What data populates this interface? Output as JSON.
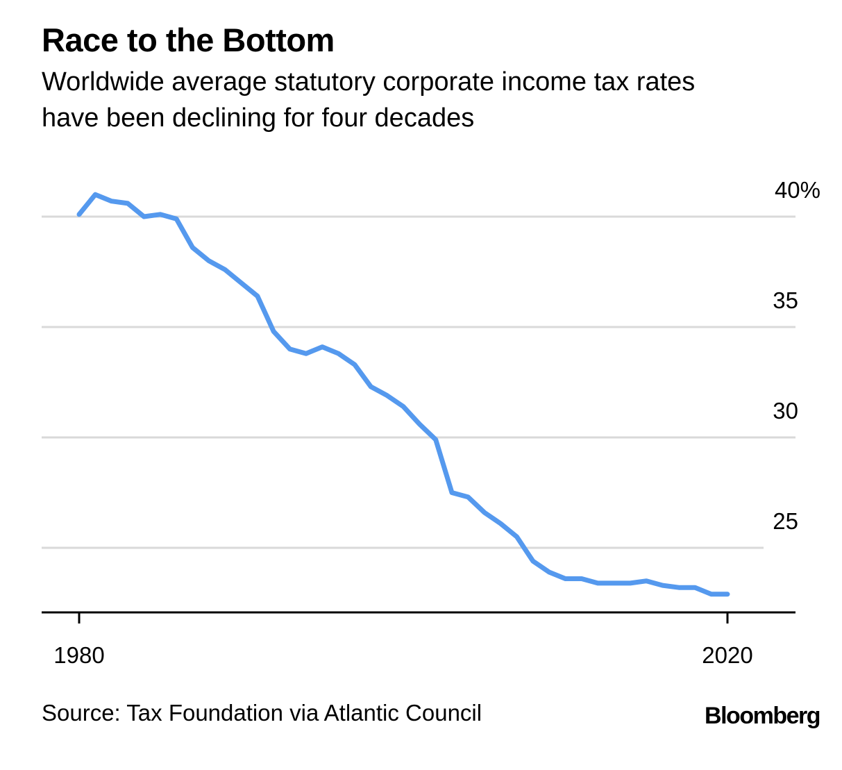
{
  "title": "Race to the Bottom",
  "subtitle_lines": [
    "Worldwide average statutory corporate income tax rates",
    "have been declining for four decades"
  ],
  "source": "Source: Tax Foundation via Atlantic Council",
  "brand": "Bloomberg",
  "colors": {
    "line": "#5599ee",
    "grid": "#d9d9d9",
    "axis": "#000000"
  },
  "chart_data": {
    "type": "line",
    "xlim": [
      1980,
      2020
    ],
    "ylim": [
      22,
      40
    ],
    "x_ticks": [
      {
        "value": 1980,
        "label": "1980"
      },
      {
        "value": 2020,
        "label": "2020"
      }
    ],
    "y_ticks": [
      {
        "value": 40,
        "label": "40%"
      },
      {
        "value": 35,
        "label": "35"
      },
      {
        "value": 30,
        "label": "30"
      },
      {
        "value": 25,
        "label": "25"
      }
    ],
    "grid": true,
    "series": [
      {
        "x": [
          1980,
          1981,
          1982,
          1983,
          1984,
          1985,
          1986,
          1987,
          1988,
          1989,
          1990,
          1991,
          1992,
          1993,
          1994,
          1995,
          1996,
          1997,
          1998,
          1999,
          2000,
          2001,
          2002,
          2003,
          2004,
          2005,
          2006,
          2007,
          2008,
          2009,
          2010,
          2011,
          2012,
          2013,
          2014,
          2015,
          2016,
          2017,
          2018,
          2019,
          2020
        ],
        "y": [
          40.1,
          41.0,
          40.7,
          40.6,
          40.0,
          40.1,
          39.9,
          38.6,
          38.0,
          37.6,
          37.0,
          36.4,
          34.8,
          34.0,
          33.8,
          34.1,
          33.8,
          33.3,
          32.3,
          31.9,
          31.4,
          30.6,
          29.9,
          27.5,
          27.3,
          26.6,
          26.1,
          25.5,
          24.4,
          23.9,
          23.6,
          23.6,
          23.4,
          23.4,
          23.4,
          23.5,
          23.3,
          23.2,
          23.2,
          22.9,
          22.9
        ]
      }
    ]
  }
}
